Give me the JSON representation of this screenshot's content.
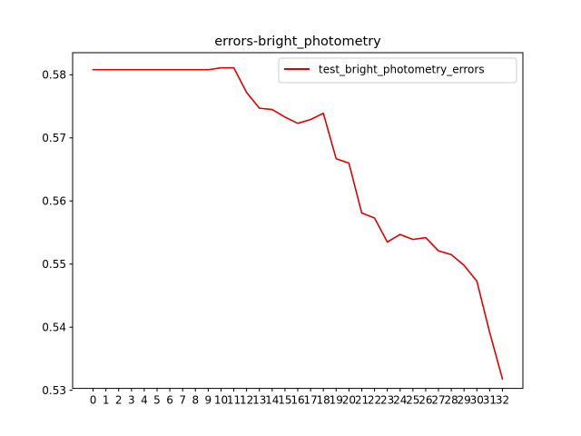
{
  "chart_data": {
    "type": "line",
    "title": "errors-bright_photometry",
    "xlabel": "",
    "ylabel": "",
    "x": [
      0,
      1,
      2,
      3,
      4,
      5,
      6,
      7,
      8,
      9,
      10,
      11,
      12,
      13,
      14,
      15,
      16,
      17,
      18,
      19,
      20,
      21,
      22,
      23,
      24,
      25,
      26,
      27,
      28,
      29,
      30,
      31,
      32
    ],
    "x_tick_labels": [
      "0",
      "1",
      "2",
      "3",
      "4",
      "5",
      "6",
      "7",
      "8",
      "9",
      "10",
      "11",
      "12",
      "13",
      "14",
      "15",
      "16",
      "17",
      "18",
      "19",
      "20",
      "21",
      "22",
      "23",
      "24",
      "25",
      "26",
      "27",
      "28",
      "29",
      "30",
      "31",
      "32"
    ],
    "y_ticks": [
      0.53,
      0.54,
      0.55,
      0.56,
      0.57,
      0.58
    ],
    "y_tick_labels": [
      "0.53",
      "0.54",
      "0.55",
      "0.56",
      "0.57",
      "0.58"
    ],
    "xlim": [
      -1.6,
      33.6
    ],
    "ylim": [
      0.5303,
      0.5835
    ],
    "series": [
      {
        "name": "test_bright_photometry_errors",
        "color": "#dd0000",
        "values": [
          0.5808,
          0.5808,
          0.5808,
          0.5808,
          0.5808,
          0.5808,
          0.5808,
          0.5808,
          0.5808,
          0.5808,
          0.5811,
          0.5811,
          0.5772,
          0.5747,
          0.5745,
          0.5733,
          0.5723,
          0.5729,
          0.5739,
          0.5667,
          0.566,
          0.5581,
          0.5573,
          0.5535,
          0.5547,
          0.5539,
          0.5542,
          0.5521,
          0.5515,
          0.5498,
          0.5473,
          0.5392,
          0.5318
        ]
      }
    ],
    "grid": false,
    "legend_position": "top-right"
  }
}
